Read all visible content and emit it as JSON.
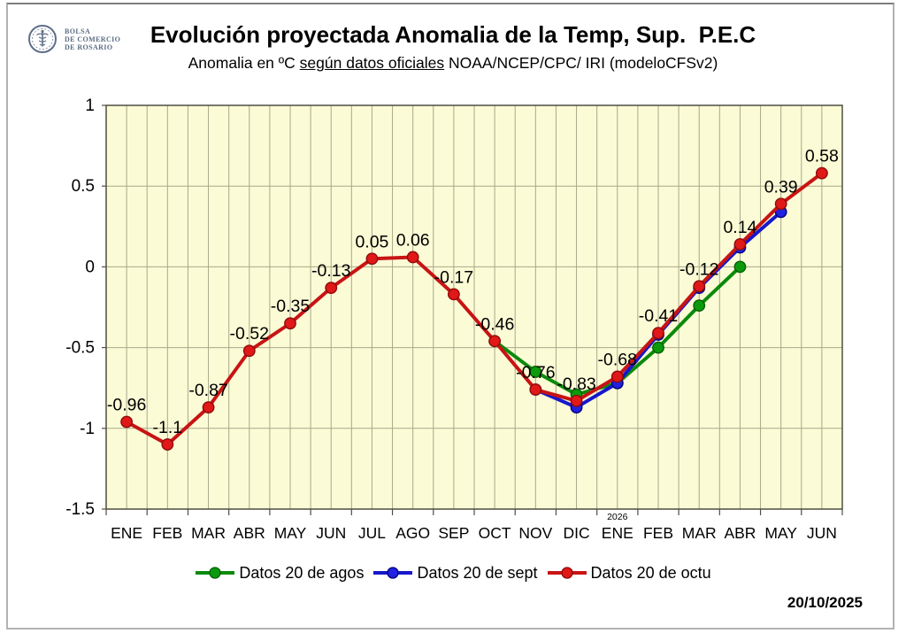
{
  "header": {
    "logo_lines": [
      "BOLSA",
      "DE COMERCIO",
      "DE ROSARIO"
    ],
    "title": "Evolución proyectada Anomalia de la Temp, Sup.  P.E.C",
    "subtitle_prefix": "Anomalia en ºC ",
    "subtitle_underlined": "según datos oficiales",
    "subtitle_suffix": " NOAA/NCEP/CPC/ IRI (modeloCFSv2)"
  },
  "chart_data": {
    "type": "line",
    "categories": [
      "ENE",
      "FEB",
      "MAR",
      "ABR",
      "MAY",
      "JUN",
      "JUL",
      "AGO",
      "SEP",
      "OCT",
      "NOV",
      "DIC",
      "ENE",
      "FEB",
      "MAR",
      "ABR",
      "MAY",
      "JUN"
    ],
    "year_label": "2026",
    "year_label_index": 12,
    "ylim": [
      -1.5,
      1
    ],
    "yticks": [
      1,
      0.5,
      0,
      -0.5,
      -1,
      -1.5
    ],
    "grid": true,
    "legend_position": "bottom",
    "plot_bg_color": "#FBFBD6",
    "grid_color": "#A9A98B",
    "border_color": "#4F4F42",
    "series": [
      {
        "name": "Datos 20 de agos",
        "color": "#0B8A0B",
        "marker_color": "#0B9A0B",
        "marker_edge": "#065F06",
        "start_index": 9,
        "values": [
          -0.46,
          -0.65,
          -0.79,
          -0.72,
          -0.5,
          -0.24,
          0
        ]
      },
      {
        "name": "Datos 20 de sept",
        "color": "#1717CB",
        "marker_color": "#2121E0",
        "marker_edge": "#00007E",
        "start_index": 10,
        "values": [
          -0.76,
          -0.87,
          -0.72,
          -0.42,
          -0.13,
          0.12,
          0.34
        ]
      },
      {
        "name": "Datos 20 de octu",
        "color": "#C81414",
        "marker_color": "#E01818",
        "marker_edge": "#8F0A0A",
        "start_index": 0,
        "values": [
          -0.96,
          -1.1,
          -0.87,
          -0.52,
          -0.35,
          -0.13,
          0.05,
          0.06,
          -0.17,
          -0.46,
          -0.76,
          -0.83,
          -0.68,
          -0.41,
          -0.12,
          0.14,
          0.39,
          0.58
        ],
        "point_labels": [
          "-0.96",
          "-1.1",
          "-0.87",
          "-0.52",
          "-0.35",
          "-0.13",
          "0.05",
          "0.06",
          "-0.17",
          "-0.46",
          "-0.76",
          "-0.83",
          "-0.68",
          "-0.41",
          "-0.12",
          "0.14",
          "0.39",
          "0.58"
        ]
      }
    ]
  },
  "footer": {
    "date": "20/10/2025"
  }
}
